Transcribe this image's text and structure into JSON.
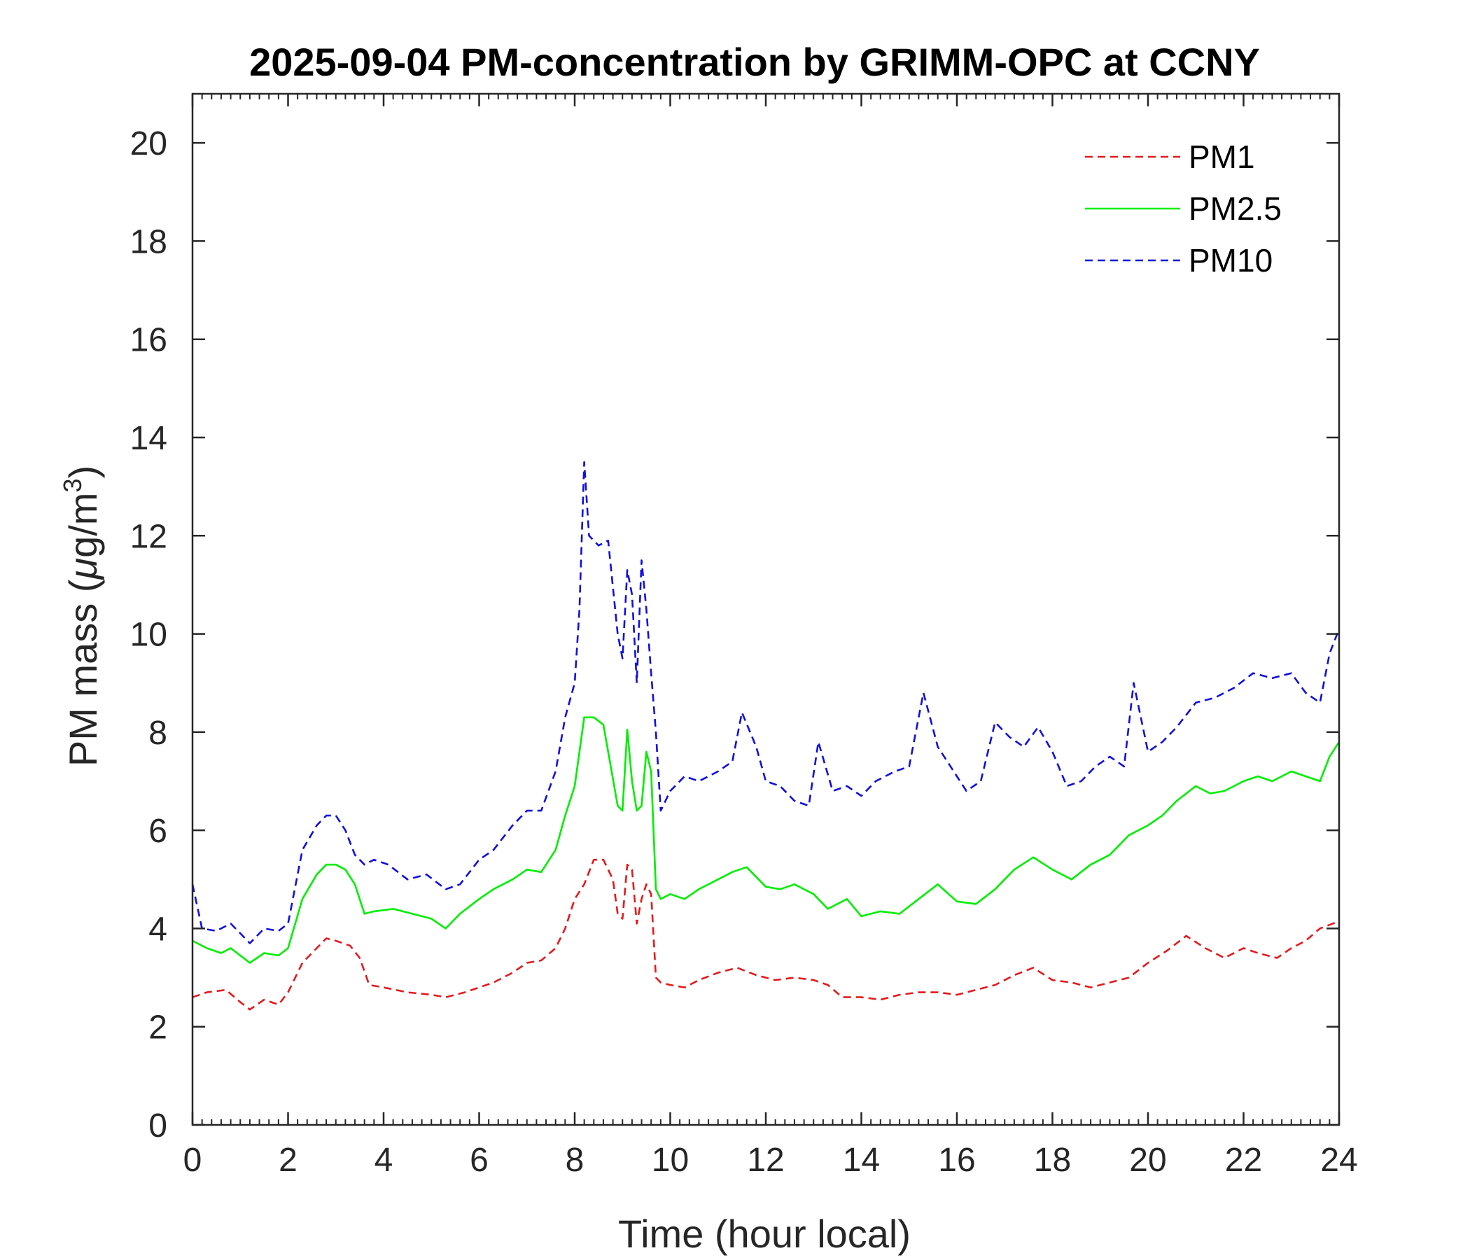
{
  "chart_data": {
    "type": "line",
    "title": "2025-09-04 PM-concentration by GRIMM-OPC at CCNY",
    "xlabel": "Time (hour local)",
    "ylabel_main": "PM mass (",
    "ylabel_mu": "μ",
    "ylabel_unit": "g/m",
    "ylabel_sup": "3",
    "ylabel_close": ")",
    "xlim": [
      0,
      24
    ],
    "ylim": [
      0,
      21
    ],
    "xticks": [
      0,
      2,
      4,
      6,
      8,
      10,
      12,
      14,
      16,
      18,
      20,
      22,
      24
    ],
    "yticks": [
      0,
      2,
      4,
      6,
      8,
      10,
      12,
      14,
      16,
      18,
      20
    ],
    "xtick_labels": [
      "0",
      "2",
      "4",
      "6",
      "8",
      "10",
      "12",
      "14",
      "16",
      "18",
      "20",
      "22",
      "24"
    ],
    "ytick_labels": [
      "0",
      "2",
      "4",
      "6",
      "8",
      "10",
      "12",
      "14",
      "16",
      "18",
      "20"
    ],
    "legend_position": "top-right",
    "series": [
      {
        "name": "PM1",
        "color": "#e31a1c",
        "dash": "dashed",
        "x": [
          0,
          0.3,
          0.7,
          1.0,
          1.2,
          1.5,
          1.8,
          2.0,
          2.3,
          2.6,
          2.8,
          3.0,
          3.3,
          3.5,
          3.7,
          4.0,
          4.5,
          5.0,
          5.3,
          5.7,
          6.0,
          6.3,
          6.7,
          7.0,
          7.3,
          7.6,
          7.8,
          8.0,
          8.2,
          8.4,
          8.6,
          8.8,
          8.9,
          9.0,
          9.1,
          9.2,
          9.3,
          9.4,
          9.5,
          9.6,
          9.7,
          9.8,
          10.0,
          10.3,
          10.6,
          11.0,
          11.4,
          11.8,
          12.2,
          12.6,
          13.0,
          13.3,
          13.6,
          14.0,
          14.4,
          14.8,
          15.2,
          15.6,
          16.0,
          16.4,
          16.8,
          17.2,
          17.6,
          18.0,
          18.4,
          18.8,
          19.2,
          19.6,
          20.0,
          20.4,
          20.8,
          21.2,
          21.6,
          22.0,
          22.3,
          22.7,
          23.0,
          23.3,
          23.6,
          24.0
        ],
        "y": [
          2.6,
          2.7,
          2.75,
          2.5,
          2.35,
          2.55,
          2.45,
          2.7,
          3.3,
          3.6,
          3.8,
          3.75,
          3.65,
          3.4,
          2.85,
          2.8,
          2.7,
          2.65,
          2.6,
          2.7,
          2.8,
          2.9,
          3.1,
          3.3,
          3.35,
          3.6,
          4.0,
          4.6,
          4.9,
          5.4,
          5.4,
          5.0,
          4.3,
          4.2,
          5.3,
          5.2,
          4.1,
          4.6,
          4.9,
          4.7,
          3.0,
          2.9,
          2.85,
          2.8,
          2.95,
          3.1,
          3.2,
          3.05,
          2.95,
          3.0,
          2.95,
          2.85,
          2.6,
          2.6,
          2.55,
          2.65,
          2.7,
          2.7,
          2.65,
          2.75,
          2.85,
          3.05,
          3.2,
          2.95,
          2.9,
          2.8,
          2.9,
          3.0,
          3.3,
          3.55,
          3.85,
          3.6,
          3.4,
          3.6,
          3.5,
          3.4,
          3.6,
          3.75,
          4.0,
          4.15
        ]
      },
      {
        "name": "PM2.5",
        "color": "#00ee00",
        "dash": "solid",
        "x": [
          0,
          0.3,
          0.6,
          0.8,
          1.0,
          1.2,
          1.5,
          1.8,
          2.0,
          2.3,
          2.6,
          2.8,
          3.0,
          3.2,
          3.4,
          3.6,
          3.8,
          4.2,
          4.6,
          5.0,
          5.3,
          5.6,
          6.0,
          6.3,
          6.7,
          7.0,
          7.3,
          7.6,
          7.8,
          8.0,
          8.2,
          8.4,
          8.6,
          8.7,
          8.9,
          9.0,
          9.1,
          9.2,
          9.3,
          9.4,
          9.5,
          9.6,
          9.7,
          9.8,
          10.0,
          10.3,
          10.6,
          11.0,
          11.3,
          11.6,
          12.0,
          12.3,
          12.6,
          13.0,
          13.3,
          13.7,
          14.0,
          14.4,
          14.8,
          15.2,
          15.6,
          16.0,
          16.4,
          16.8,
          17.2,
          17.6,
          18.0,
          18.4,
          18.8,
          19.2,
          19.6,
          20.0,
          20.3,
          20.6,
          21.0,
          21.3,
          21.6,
          22.0,
          22.3,
          22.6,
          23.0,
          23.3,
          23.6,
          23.8,
          24.0
        ],
        "y": [
          3.75,
          3.6,
          3.5,
          3.6,
          3.45,
          3.3,
          3.5,
          3.45,
          3.6,
          4.6,
          5.1,
          5.3,
          5.3,
          5.2,
          4.9,
          4.3,
          4.35,
          4.4,
          4.3,
          4.2,
          4.0,
          4.3,
          4.6,
          4.8,
          5.0,
          5.2,
          5.15,
          5.6,
          6.3,
          6.9,
          8.3,
          8.3,
          8.15,
          7.6,
          6.5,
          6.4,
          8.05,
          7.0,
          6.4,
          6.5,
          7.6,
          7.2,
          4.8,
          4.6,
          4.7,
          4.6,
          4.8,
          5.0,
          5.15,
          5.25,
          4.85,
          4.8,
          4.9,
          4.7,
          4.4,
          4.6,
          4.25,
          4.35,
          4.3,
          4.6,
          4.9,
          4.55,
          4.5,
          4.8,
          5.2,
          5.45,
          5.2,
          5.0,
          5.3,
          5.5,
          5.9,
          6.1,
          6.3,
          6.6,
          6.9,
          6.75,
          6.8,
          7.0,
          7.1,
          7.0,
          7.2,
          7.1,
          7.0,
          7.5,
          7.8
        ]
      },
      {
        "name": "PM10",
        "color": "#1010dd",
        "dash": "dashed",
        "x": [
          0,
          0.2,
          0.5,
          0.8,
          1.0,
          1.2,
          1.5,
          1.8,
          2.0,
          2.3,
          2.6,
          2.8,
          3.0,
          3.2,
          3.4,
          3.6,
          3.8,
          4.1,
          4.5,
          4.9,
          5.3,
          5.6,
          6.0,
          6.3,
          6.7,
          7.0,
          7.3,
          7.6,
          7.8,
          8.0,
          8.1,
          8.2,
          8.3,
          8.5,
          8.7,
          8.9,
          9.0,
          9.1,
          9.2,
          9.3,
          9.4,
          9.5,
          9.6,
          9.7,
          9.8,
          10.0,
          10.3,
          10.6,
          11.0,
          11.3,
          11.5,
          11.8,
          12.0,
          12.3,
          12.6,
          12.9,
          13.1,
          13.4,
          13.7,
          14.0,
          14.3,
          14.7,
          15.0,
          15.3,
          15.6,
          16.0,
          16.2,
          16.5,
          16.8,
          17.1,
          17.4,
          17.7,
          18.0,
          18.3,
          18.6,
          18.9,
          19.2,
          19.5,
          19.7,
          20.0,
          20.3,
          20.6,
          21.0,
          21.4,
          21.8,
          22.2,
          22.6,
          23.0,
          23.3,
          23.6,
          23.8,
          24.0
        ],
        "y": [
          4.9,
          4.0,
          3.95,
          4.1,
          3.9,
          3.7,
          4.0,
          3.95,
          4.1,
          5.6,
          6.1,
          6.3,
          6.3,
          6.0,
          5.5,
          5.3,
          5.4,
          5.3,
          5.0,
          5.1,
          4.8,
          4.9,
          5.4,
          5.6,
          6.1,
          6.4,
          6.4,
          7.2,
          8.3,
          9.0,
          10.5,
          13.5,
          12.0,
          11.8,
          11.9,
          10.0,
          9.5,
          11.3,
          10.8,
          9.0,
          11.5,
          10.5,
          9.2,
          8.0,
          6.4,
          6.8,
          7.1,
          7.0,
          7.2,
          7.4,
          8.4,
          7.7,
          7.0,
          6.9,
          6.6,
          6.5,
          7.8,
          6.8,
          6.9,
          6.7,
          7.0,
          7.2,
          7.3,
          8.8,
          7.7,
          7.1,
          6.8,
          7.0,
          8.2,
          7.9,
          7.7,
          8.1,
          7.6,
          6.9,
          7.0,
          7.3,
          7.5,
          7.3,
          9.0,
          7.6,
          7.8,
          8.1,
          8.6,
          8.7,
          8.9,
          9.2,
          9.1,
          9.2,
          8.8,
          8.6,
          9.6,
          10.1
        ]
      }
    ]
  }
}
